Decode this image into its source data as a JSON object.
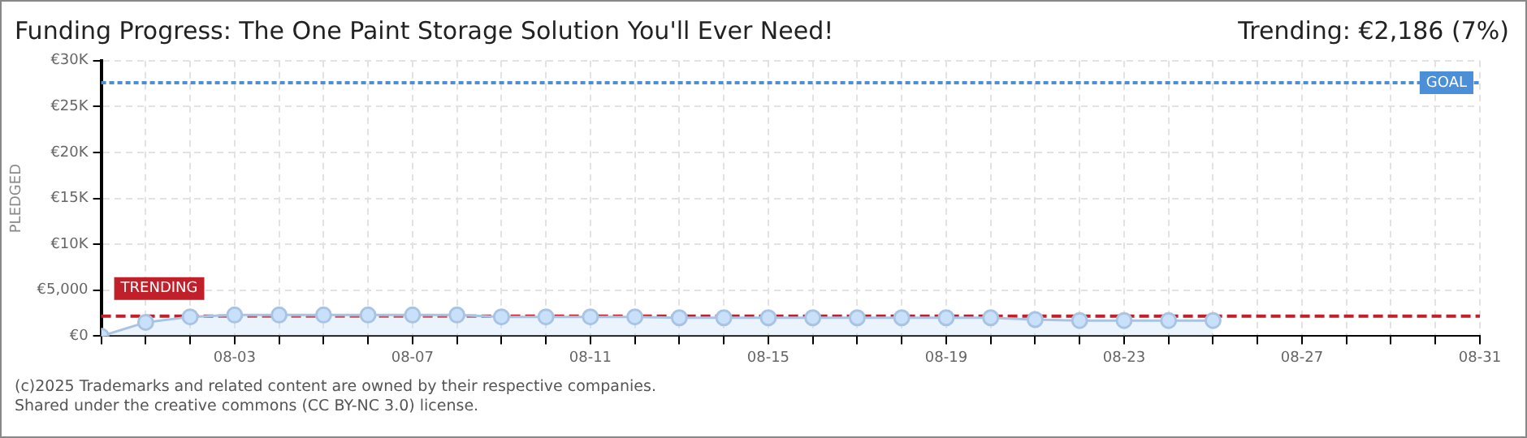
{
  "chart_data": {
    "type": "area",
    "title": "Funding Progress: The One Paint Storage Solution You'll Ever Need!",
    "ylabel": "PLEDGED",
    "annotations": [
      "Trending: €2,186 (7%)",
      "(c)2025 Trademarks and related content are owned by their respective companies.",
      "Shared under the creative commons (CC BY-NC 3.0) license."
    ],
    "x": [
      "--07-31",
      "--08-01",
      "--08-02",
      "--08-03",
      "--08-04",
      "--08-05",
      "--08-06",
      "--08-07",
      "--08-08",
      "--08-09",
      "--08-10",
      "--08-11",
      "--08-12",
      "--08-13",
      "--08-14",
      "--08-15",
      "--08-16",
      "--08-17",
      "--08-18",
      "--08-19",
      "--08-20",
      "--08-21",
      "--08-22",
      "--08-23",
      "--08-24",
      "--08-25"
    ],
    "series": [
      {
        "color": "#a9c4e3",
        "values": [
          0,
          1500,
          2100,
          2300,
          2300,
          2300,
          2300,
          2300,
          2300,
          2100,
          2100,
          2100,
          2100,
          2000,
          2000,
          2000,
          2000,
          2000,
          2000,
          2000,
          2000,
          1800,
          1700,
          1700,
          1700,
          1700
        ]
      }
    ],
    "xlim": [
      "--07-31",
      "--08-31"
    ],
    "xticks": [
      {
        "value": "--07-31",
        "label": null
      },
      {
        "value": "--08-01",
        "label": null
      },
      {
        "value": "--08-02",
        "label": null
      },
      {
        "value": "--08-03",
        "label": "08-03"
      },
      {
        "value": "--08-04",
        "label": null
      },
      {
        "value": "--08-05",
        "label": null
      },
      {
        "value": "--08-06",
        "label": null
      },
      {
        "value": "--08-07",
        "label": "08-07"
      },
      {
        "value": "--08-08",
        "label": null
      },
      {
        "value": "--08-09",
        "label": null
      },
      {
        "value": "--08-10",
        "label": null
      },
      {
        "value": "--08-11",
        "label": "08-11"
      },
      {
        "value": "--08-12",
        "label": null
      },
      {
        "value": "--08-13",
        "label": null
      },
      {
        "value": "--08-14",
        "label": null
      },
      {
        "value": "--08-15",
        "label": "08-15"
      },
      {
        "value": "--08-16",
        "label": null
      },
      {
        "value": "--08-17",
        "label": null
      },
      {
        "value": "--08-18",
        "label": null
      },
      {
        "value": "--08-19",
        "label": "08-19"
      },
      {
        "value": "--08-20",
        "label": null
      },
      {
        "value": "--08-21",
        "label": null
      },
      {
        "value": "--08-22",
        "label": null
      },
      {
        "value": "--08-23",
        "label": "08-23"
      },
      {
        "value": "--08-24",
        "label": null
      },
      {
        "value": "--08-25",
        "label": null
      },
      {
        "value": "--08-26",
        "label": null
      },
      {
        "value": "--08-27",
        "label": "08-27"
      },
      {
        "value": "--08-28",
        "label": null
      },
      {
        "value": "--08-29",
        "label": null
      },
      {
        "value": "--08-30",
        "label": null
      },
      {
        "value": "--08-31",
        "label": "08-31"
      }
    ],
    "ylim": [
      0,
      30000
    ],
    "yticks": [
      {
        "value": 0,
        "label": "€0"
      },
      {
        "value": 5000,
        "label": "€5,000"
      },
      {
        "value": 10000,
        "label": "€10K"
      },
      {
        "value": 15000,
        "label": "€15K"
      },
      {
        "value": 20000,
        "label": "€20K"
      },
      {
        "value": 25000,
        "label": "€25K"
      },
      {
        "value": 30000,
        "label": "€30K"
      }
    ],
    "ref_lines": [
      {
        "axis": "y",
        "value": 27600,
        "label": "GOAL",
        "color": "#4a8fd8",
        "line_style": "dotted"
      },
      {
        "axis": "y",
        "value": 2186,
        "label": "TRENDING",
        "color": "#c0202a",
        "line_style": "dashed"
      }
    ],
    "grid": true,
    "legend": false,
    "marker": "circle",
    "line_style": "solid"
  }
}
